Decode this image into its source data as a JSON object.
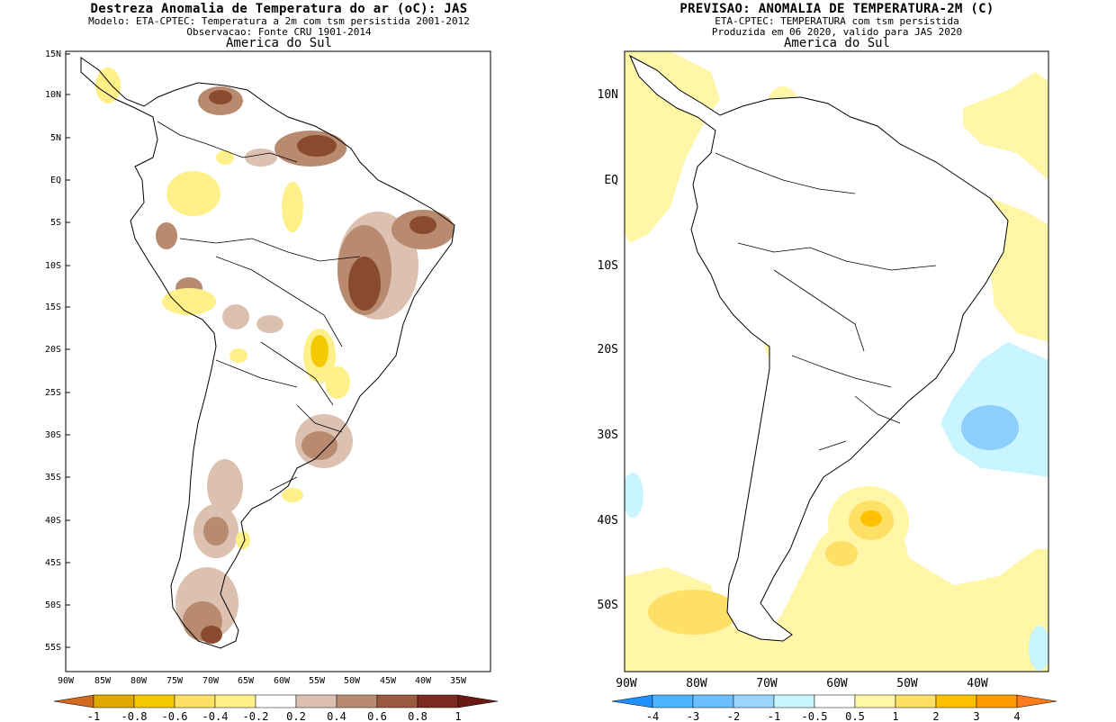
{
  "left_panel": {
    "title": "Destreza Anomalia de Temperatura do ar (oC): JAS",
    "subtitle_1": "Modelo: ETA-CPTEC: Temperatura a 2m com tsm persistida 2001-2012",
    "subtitle_2": "Observacao: Fonte CRU 1901-2014",
    "region": "America do Sul",
    "lat_labels": [
      "15N",
      "10N",
      "5N",
      "EQ",
      "5S",
      "10S",
      "15S",
      "20S",
      "25S",
      "30S",
      "35S",
      "40S",
      "45S",
      "50S",
      "55S"
    ],
    "lon_labels": [
      "90W",
      "85W",
      "80W",
      "75W",
      "70W",
      "65W",
      "60W",
      "55W",
      "50W",
      "45W",
      "40W",
      "35W"
    ],
    "colorbar": {
      "labels": [
        "-1",
        "-0.8",
        "-0.6",
        "-0.4",
        "-0.2",
        "0.2",
        "0.4",
        "0.6",
        "0.8",
        "1"
      ],
      "colors": [
        "#d2691e",
        "#e0a800",
        "#f5c900",
        "#fff08a",
        "#ffffff",
        "#dcc0b0",
        "#b88a70",
        "#9a5a40",
        "#7a2a20"
      ]
    }
  },
  "right_panel": {
    "title": "PREVISAO: ANOMALIA DE TEMPERATURA-2M (C)",
    "subtitle_1": "ETA-CPTEC: TEMPERATURA com tsm persistida",
    "subtitle_2": "Produzida em 06 2020, valido para JAS 2020",
    "region": "America do Sul",
    "lat_labels": [
      "10N",
      "EQ",
      "10S",
      "20S",
      "30S",
      "40S",
      "50S"
    ],
    "lon_labels": [
      "90W",
      "80W",
      "70W",
      "60W",
      "50W",
      "40W"
    ],
    "colorbar": {
      "labels": [
        "-4",
        "-3",
        "-2",
        "-1",
        "-0.5",
        "0.5",
        "1",
        "2",
        "3",
        "4"
      ],
      "colors": [
        "#1e90ff",
        "#4fb4ff",
        "#8ccfff",
        "#c8f5ff",
        "#ffffff",
        "#fff6a8",
        "#ffe066",
        "#ffc000",
        "#ff8c00"
      ]
    }
  }
}
